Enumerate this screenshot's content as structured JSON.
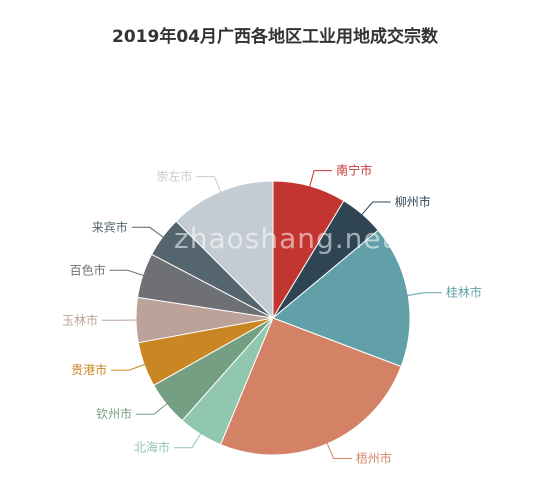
{
  "watermark": "zhaoshang.net",
  "chart_data": {
    "type": "pie",
    "title": "2019年04月广西各地区工业用地成交宗数",
    "start_angle_deg": 0,
    "direction": "clockwise",
    "slices": [
      {
        "label": "南宁市",
        "value": 0.09,
        "color": "#c23531"
      },
      {
        "label": "柳州市",
        "value": 0.055,
        "color": "#2f4554"
      },
      {
        "label": "桂林市",
        "value": 0.175,
        "color": "#61a0a8"
      },
      {
        "label": "梧州市",
        "value": 0.265,
        "color": "#d48265"
      },
      {
        "label": "北海市",
        "value": 0.055,
        "color": "#91c7ae"
      },
      {
        "label": "钦州市",
        "value": 0.055,
        "color": "#749f83"
      },
      {
        "label": "贵港市",
        "value": 0.055,
        "color": "#ca8622"
      },
      {
        "label": "玉林市",
        "value": 0.055,
        "color": "#bda29a"
      },
      {
        "label": "百色市",
        "value": 0.055,
        "color": "#6e7074"
      },
      {
        "label": "来宾市",
        "value": 0.05,
        "color": "#546570"
      },
      {
        "label": "崇左市",
        "value": 0.13,
        "color": "#c4ccd3"
      }
    ]
  }
}
